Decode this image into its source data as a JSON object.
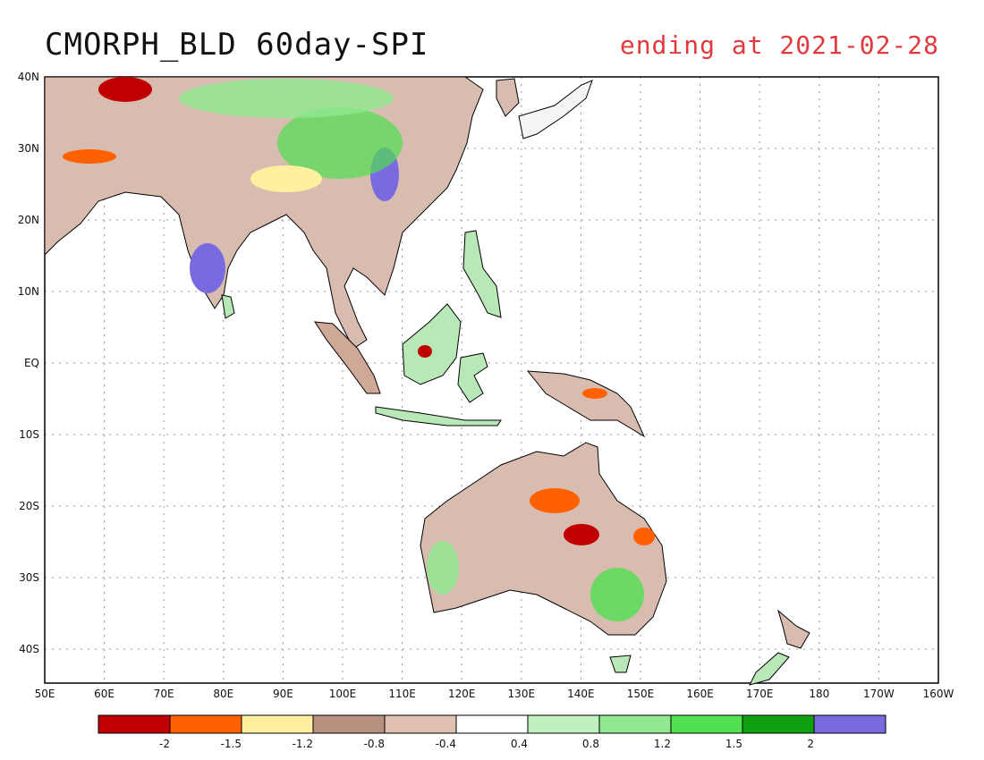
{
  "title": "CMORPH_BLD 60day-SPI",
  "subtitle": "ending at 2021-02-28",
  "map": {
    "lat_labels": [
      "40N",
      "30N",
      "20N",
      "10N",
      "EQ",
      "10S",
      "20S",
      "30S",
      "40S"
    ],
    "lon_labels": [
      "50E",
      "60E",
      "70E",
      "80E",
      "90E",
      "100E",
      "110E",
      "120E",
      "130E",
      "140E",
      "150E",
      "160E",
      "170E",
      "180",
      "170W",
      "160W"
    ]
  },
  "legend": {
    "colors": [
      "#c00000",
      "#ff6000",
      "#fff0a0",
      "#b89080",
      "#e0c0b0",
      "#ffffff",
      "#c0f0c0",
      "#90e890",
      "#50e050",
      "#10a010",
      "#7a6ae0"
    ],
    "labels": [
      "-2",
      "-1.5",
      "-1.2",
      "-0.8",
      "-0.4",
      "0.4",
      "0.8",
      "1.2",
      "1.5",
      "2"
    ]
  }
}
